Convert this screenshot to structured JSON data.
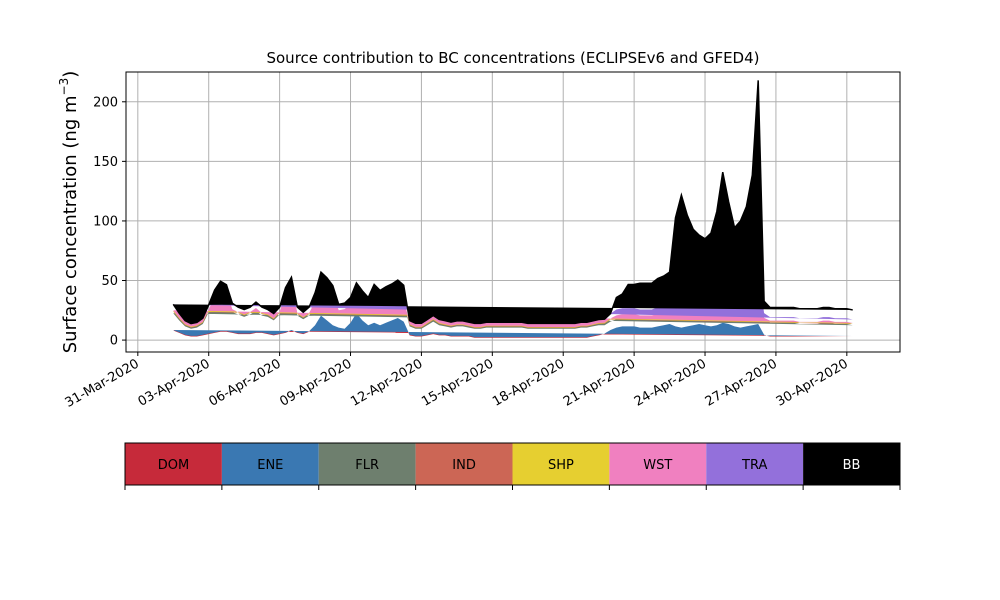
{
  "chart_data": {
    "type": "area",
    "stacked": true,
    "title": "Source contribution to BC concentrations (ECLIPSEv6 and GFED4)",
    "xlabel": "",
    "ylabel_main": "Surface concentration (ng m",
    "ylabel_exp": "−3",
    "ylabel_close": ")",
    "ylim": [
      -10,
      225
    ],
    "yticks": [
      0,
      50,
      100,
      150,
      200
    ],
    "x_axis_start": "2020-03-30T12:00",
    "x_axis_end": "2020-05-02T06:00",
    "xtick_dates": [
      "2020-03-31",
      "2020-04-03",
      "2020-04-06",
      "2020-04-09",
      "2020-04-12",
      "2020-04-15",
      "2020-04-18",
      "2020-04-21",
      "2020-04-24",
      "2020-04-27",
      "2020-04-30"
    ],
    "xtick_labels": [
      "31-Mar-2020",
      "03-Apr-2020",
      "06-Apr-2020",
      "09-Apr-2020",
      "12-Apr-2020",
      "15-Apr-2020",
      "18-Apr-2020",
      "21-Apr-2020",
      "24-Apr-2020",
      "27-Apr-2020",
      "30-Apr-2020"
    ],
    "grid": true,
    "series": [
      {
        "name": "DOM",
        "color": "#c62a3a"
      },
      {
        "name": "ENE",
        "color": "#3a78b2"
      },
      {
        "name": "FLR",
        "color": "#6e7f6e"
      },
      {
        "name": "IND",
        "color": "#cc6655"
      },
      {
        "name": "SHP",
        "color": "#e6cf30"
      },
      {
        "name": "WST",
        "color": "#f080c0"
      },
      {
        "name": "TRA",
        "color": "#9370db"
      },
      {
        "name": "BB",
        "color": "#000000"
      }
    ],
    "x": [
      "2020-04-01T12:00",
      "2020-04-01T18:00",
      "2020-04-02T00:00",
      "2020-04-02T06:00",
      "2020-04-02T12:00",
      "2020-04-02T18:00",
      "2020-04-03T00:00",
      "2020-04-03T06:00",
      "2020-04-03T12:00",
      "2020-04-03T18:00",
      "2020-04-04T00:00",
      "2020-04-04T06:00",
      "2020-04-04T12:00",
      "2020-04-04T18:00",
      "2020-04-05T00:00",
      "2020-04-05T06:00",
      "2020-04-05T12:00",
      "2020-04-05T18:00",
      "2020-04-06T00:00",
      "2020-04-06T06:00",
      "2020-04-06T12:00",
      "2020-04-06T18:00",
      "2020-04-07T00:00",
      "2020-04-07T06:00",
      "2020-04-07T12:00",
      "2020-04-07T18:00",
      "2020-04-08T00:00",
      "2020-04-08T06:00",
      "2020-04-08T12:00",
      "2020-04-08T18:00",
      "2020-04-09T00:00",
      "2020-04-09T06:00",
      "2020-04-09T12:00",
      "2020-04-09T18:00",
      "2020-04-10T00:00",
      "2020-04-10T06:00",
      "2020-04-10T12:00",
      "2020-04-10T18:00",
      "2020-04-11T00:00",
      "2020-04-11T06:00",
      "2020-04-11T12:00",
      "2020-04-11T18:00",
      "2020-04-12T00:00",
      "2020-04-12T06:00",
      "2020-04-12T12:00",
      "2020-04-12T18:00",
      "2020-04-13T00:00",
      "2020-04-13T06:00",
      "2020-04-13T12:00",
      "2020-04-13T18:00",
      "2020-04-14T00:00",
      "2020-04-14T06:00",
      "2020-04-14T12:00",
      "2020-04-14T18:00",
      "2020-04-15T00:00",
      "2020-04-15T06:00",
      "2020-04-15T12:00",
      "2020-04-15T18:00",
      "2020-04-16T00:00",
      "2020-04-16T06:00",
      "2020-04-16T12:00",
      "2020-04-16T18:00",
      "2020-04-17T00:00",
      "2020-04-17T06:00",
      "2020-04-17T12:00",
      "2020-04-17T18:00",
      "2020-04-18T00:00",
      "2020-04-18T06:00",
      "2020-04-18T12:00",
      "2020-04-18T18:00",
      "2020-04-19T00:00",
      "2020-04-19T06:00",
      "2020-04-19T12:00",
      "2020-04-19T18:00",
      "2020-04-20T00:00",
      "2020-04-20T06:00",
      "2020-04-20T12:00",
      "2020-04-20T18:00",
      "2020-04-21T00:00",
      "2020-04-21T06:00",
      "2020-04-21T12:00",
      "2020-04-21T18:00",
      "2020-04-22T00:00",
      "2020-04-22T06:00",
      "2020-04-22T12:00",
      "2020-04-22T18:00",
      "2020-04-23T00:00",
      "2020-04-23T06:00",
      "2020-04-23T12:00",
      "2020-04-23T18:00",
      "2020-04-24T00:00",
      "2020-04-24T06:00",
      "2020-04-24T12:00",
      "2020-04-24T18:00",
      "2020-04-25T00:00",
      "2020-04-25T06:00",
      "2020-04-25T12:00",
      "2020-04-25T18:00",
      "2020-04-26T00:00",
      "2020-04-26T06:00",
      "2020-04-26T12:00",
      "2020-04-26T18:00",
      "2020-04-27T00:00",
      "2020-04-27T06:00",
      "2020-04-27T12:00",
      "2020-04-27T18:00",
      "2020-04-28T00:00",
      "2020-04-28T06:00",
      "2020-04-28T12:00",
      "2020-04-28T18:00",
      "2020-04-29T00:00",
      "2020-04-29T06:00",
      "2020-04-29T12:00",
      "2020-04-29T18:00",
      "2020-04-30T00:00",
      "2020-04-30T06:00",
      "2020-04-30T12:00",
      "2020-04-30T18:00",
      "2020-05-01T00:00",
      "2020-05-01T06:00"
    ],
    "values": {
      "DOM": [
        8,
        6,
        4,
        3,
        3,
        4,
        5,
        6,
        7,
        7,
        6,
        5,
        5,
        5,
        6,
        6,
        5,
        4,
        5,
        6,
        8,
        6,
        5,
        7,
        12,
        20,
        16,
        12,
        10,
        9,
        14,
        22,
        16,
        12,
        14,
        12,
        14,
        16,
        18,
        15,
        4,
        3,
        3,
        4,
        5,
        4,
        4,
        3,
        3,
        3,
        3,
        2,
        2,
        2,
        2,
        2,
        2,
        2,
        2,
        2,
        2,
        2,
        2,
        2,
        2,
        2,
        2,
        2,
        2,
        2,
        2,
        3,
        4,
        5,
        8,
        10,
        11,
        11,
        11,
        10,
        10,
        10,
        11,
        12,
        13,
        11,
        10,
        11,
        12,
        13,
        12,
        11,
        12,
        14,
        13,
        11,
        10,
        11,
        12,
        13,
        4,
        3,
        3,
        3,
        3,
        3,
        3,
        3,
        3,
        3,
        3,
        3,
        3,
        3,
        3,
        3
      ],
      "ENE": [
        0.5,
        0.5,
        0.5,
        0.5,
        0.5,
        0.5,
        0.5,
        0.5,
        0.5,
        0.5,
        0.5,
        0.5,
        0.5,
        0.5,
        0.5,
        0.5,
        0.5,
        0.5,
        0.5,
        0.5,
        0.5,
        0.5,
        0.5,
        0.5,
        0.5,
        0.5,
        0.5,
        0.5,
        0.5,
        0.5,
        0.5,
        0.5,
        0.5,
        0.5,
        0.5,
        0.5,
        0.5,
        0.5,
        0.5,
        0.5,
        0.5,
        0.5,
        0.5,
        0.5,
        0.5,
        0.5,
        0.5,
        0.5,
        0.5,
        0.5,
        0.5,
        0.5,
        0.5,
        0.5,
        0.5,
        0.5,
        0.5,
        0.5,
        0.5,
        0.5,
        0.5,
        0.5,
        0.5,
        0.5,
        0.5,
        0.5,
        0.5,
        0.5,
        0.5,
        0.5,
        0.5,
        0.5,
        0.5,
        0.5,
        0.5,
        0.5,
        0.5,
        0.5,
        0.5,
        0.5,
        0.5,
        0.5,
        0.5,
        0.5,
        0.5,
        0.5,
        0.5,
        0.5,
        0.5,
        0.5,
        0.5,
        0.5,
        0.5,
        0.5,
        0.5,
        0.5,
        0.5,
        0.5,
        0.5,
        0.5,
        0.5,
        0.5,
        0.5,
        0.5,
        0.5,
        0.5,
        0.5,
        0.5,
        0.5,
        0.5,
        0.5,
        0.5,
        0.5,
        0.5,
        0.5,
        0.5
      ],
      "FLR": [
        14,
        10,
        7,
        6,
        7,
        9,
        18,
        28,
        33,
        30,
        17,
        16,
        14,
        16,
        18,
        14,
        14,
        12,
        16,
        30,
        35,
        14,
        12,
        13,
        17,
        24,
        25,
        24,
        12,
        14,
        12,
        12,
        12,
        12,
        18,
        16,
        16,
        16,
        16,
        16,
        7,
        6,
        6,
        8,
        10,
        8,
        7,
        7,
        8,
        8,
        7,
        7,
        7,
        8,
        8,
        8,
        8,
        8,
        8,
        8,
        7,
        7,
        7,
        7,
        7,
        7,
        7,
        7,
        7,
        8,
        8,
        8,
        8,
        7,
        7,
        7,
        7,
        7,
        7,
        7,
        7,
        7,
        7,
        7,
        8,
        9,
        10,
        11,
        12,
        12,
        11,
        11,
        12,
        30,
        28,
        20,
        18,
        18,
        22,
        28,
        12,
        11,
        11,
        11,
        11,
        11,
        10,
        10,
        10,
        10,
        11,
        11,
        10,
        10,
        10,
        9
      ],
      "IND": [
        1.5,
        1.2,
        1,
        1,
        1,
        1,
        1.2,
        1.5,
        1.8,
        1.8,
        1.4,
        1.2,
        1.2,
        1.2,
        1.4,
        1.3,
        1.2,
        1,
        1.2,
        1.5,
        2,
        1.3,
        1.1,
        1.3,
        2,
        3,
        2.5,
        2,
        1.5,
        1.5,
        2,
        3,
        2.5,
        2,
        2,
        2,
        2,
        2.3,
        2.5,
        2.2,
        1,
        0.9,
        0.9,
        1,
        1.2,
        1,
        1,
        0.9,
        0.9,
        0.9,
        0.9,
        0.8,
        0.8,
        0.8,
        0.8,
        0.8,
        0.8,
        0.8,
        0.8,
        0.8,
        0.8,
        0.8,
        0.8,
        0.8,
        0.8,
        0.8,
        0.8,
        0.8,
        0.8,
        0.8,
        0.8,
        0.9,
        1,
        1.2,
        1.6,
        2,
        2,
        2,
        2,
        2,
        2,
        2,
        2,
        2,
        2.2,
        2,
        2,
        2,
        2.2,
        2.3,
        2.2,
        2,
        2.2,
        3,
        3,
        2.5,
        2.2,
        2.2,
        2.5,
        3,
        1.2,
        1,
        1,
        1,
        1,
        1,
        1,
        1,
        1,
        1,
        1,
        1,
        1,
        1,
        1,
        1
      ],
      "SHP": [
        0.3,
        0.3,
        0.3,
        0.3,
        0.3,
        0.3,
        0.3,
        0.3,
        0.3,
        0.3,
        0.3,
        0.3,
        0.3,
        0.3,
        0.3,
        0.3,
        0.3,
        0.3,
        0.3,
        0.3,
        0.3,
        0.3,
        0.3,
        0.3,
        0.3,
        0.3,
        0.3,
        0.3,
        0.3,
        0.3,
        0.3,
        0.3,
        0.3,
        0.3,
        0.3,
        0.3,
        0.3,
        0.3,
        0.3,
        0.3,
        0.3,
        0.3,
        0.3,
        0.3,
        0.3,
        0.3,
        0.3,
        0.3,
        0.3,
        0.3,
        0.3,
        0.3,
        0.3,
        0.3,
        0.3,
        0.3,
        0.3,
        0.3,
        0.3,
        0.3,
        0.3,
        0.3,
        0.3,
        0.3,
        0.3,
        0.3,
        0.3,
        0.3,
        0.3,
        0.3,
        0.3,
        0.3,
        0.3,
        0.3,
        0.3,
        0.3,
        0.3,
        0.3,
        0.3,
        0.3,
        0.3,
        0.3,
        0.3,
        0.3,
        0.3,
        0.3,
        0.3,
        0.3,
        0.3,
        0.3,
        0.3,
        0.3,
        0.3,
        0.3,
        0.3,
        0.3,
        0.3,
        0.3,
        0.3,
        0.3,
        0.3,
        0.3,
        0.3,
        0.3,
        0.3,
        0.3,
        0.3,
        0.3,
        0.3,
        0.3,
        0.3,
        0.3,
        0.3,
        0.3,
        0.3,
        0.3
      ],
      "WST": [
        0.7,
        0.6,
        0.5,
        0.5,
        0.5,
        0.5,
        0.6,
        0.7,
        0.8,
        0.8,
        0.7,
        0.6,
        0.6,
        0.6,
        0.7,
        0.6,
        0.6,
        0.5,
        0.6,
        0.7,
        0.9,
        0.6,
        0.5,
        0.6,
        0.9,
        1.2,
        1,
        0.9,
        0.7,
        0.7,
        0.9,
        1.2,
        1,
        0.9,
        0.9,
        0.9,
        0.9,
        1,
        1.1,
        1,
        0.5,
        0.4,
        0.4,
        0.5,
        0.6,
        0.5,
        0.5,
        0.4,
        0.4,
        0.4,
        0.4,
        0.4,
        0.4,
        0.4,
        0.4,
        0.4,
        0.4,
        0.4,
        0.4,
        0.4,
        0.4,
        0.4,
        0.4,
        0.4,
        0.4,
        0.4,
        0.4,
        0.4,
        0.4,
        0.4,
        0.4,
        0.4,
        0.5,
        0.6,
        0.8,
        0.9,
        0.9,
        0.9,
        0.9,
        0.9,
        0.9,
        0.9,
        0.9,
        0.9,
        1,
        0.9,
        0.9,
        0.9,
        1,
        1,
        1,
        0.9,
        1,
        1.2,
        1.2,
        1,
        1,
        1,
        1.1,
        1.2,
        0.6,
        0.5,
        0.5,
        0.5,
        0.5,
        0.5,
        0.5,
        0.5,
        0.5,
        0.5,
        0.5,
        0.5,
        0.5,
        0.5,
        0.5,
        0.5
      ],
      "TRA": [
        5,
        4,
        3,
        2.5,
        2.5,
        3,
        4,
        5,
        6,
        6,
        5,
        4,
        4,
        4,
        5,
        5,
        4,
        4,
        4,
        5,
        6,
        5,
        4,
        5,
        7,
        8,
        7,
        6,
        5,
        5,
        6,
        8,
        7,
        6,
        6,
        6,
        7,
        7,
        8,
        7,
        3,
        3,
        3,
        3,
        3,
        3,
        3,
        3,
        3,
        3,
        3,
        3,
        3,
        3,
        3,
        3,
        3,
        3,
        3,
        3,
        3,
        3,
        3,
        3,
        3,
        3,
        3,
        3,
        3,
        3,
        3,
        3,
        3,
        3,
        4,
        5,
        5,
        5,
        5,
        5,
        5,
        5,
        6,
        7,
        8,
        9,
        8,
        9,
        10,
        9,
        8,
        9,
        10,
        12,
        10,
        9,
        8,
        9,
        10,
        12,
        4,
        3,
        3,
        3,
        3,
        3,
        3,
        3,
        3,
        3,
        3,
        3,
        3,
        3,
        3,
        3
      ],
      "BB": [
        0,
        0,
        0,
        0,
        0,
        0,
        0,
        0,
        0,
        0,
        0,
        0,
        0,
        0,
        0,
        0,
        0,
        0,
        0,
        0,
        0,
        0,
        0,
        0,
        0,
        0,
        0,
        0,
        0,
        0,
        0,
        1,
        2,
        2,
        5,
        4,
        4,
        4,
        4,
        4,
        0,
        0,
        0,
        0,
        0,
        0,
        0,
        0,
        0,
        0,
        0,
        0,
        0,
        0,
        0,
        0,
        0,
        0,
        0,
        0,
        0,
        0,
        0,
        0,
        0,
        0,
        0,
        0,
        0,
        0,
        0,
        0,
        0,
        0,
        0,
        10,
        12,
        20,
        20,
        22,
        22,
        22,
        24,
        24,
        24,
        70,
        90,
        70,
        55,
        50,
        50,
        55,
        70,
        80,
        60,
        50,
        60,
        70,
        90,
        160,
        10,
        8,
        8,
        8,
        8,
        8,
        8,
        8,
        8,
        8,
        8,
        8,
        8,
        8,
        8,
        8
      ]
    }
  }
}
